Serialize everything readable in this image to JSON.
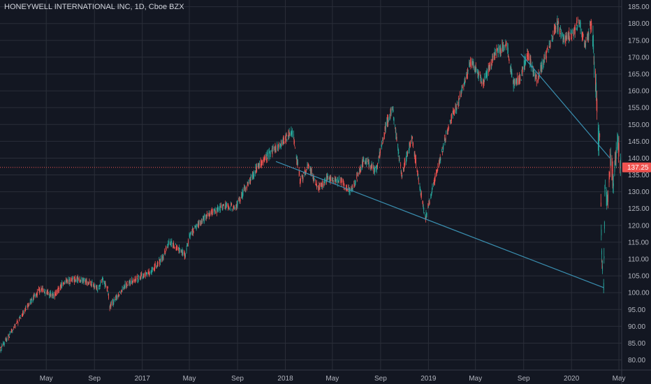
{
  "title": "HONEYWELL INTERNATIONAL INC, 1D, Cboe BZX",
  "colors": {
    "background": "#131722",
    "grid": "#2a2e39",
    "up": "#26a69a",
    "down": "#ef5350",
    "trendline": "#3a8fb0",
    "last_price_line": "#ef5350",
    "axis_text": "#b2b5be"
  },
  "chart_data": {
    "type": "candlestick",
    "title": "HONEYWELL INTERNATIONAL INC, 1D, Cboe BZX",
    "ylim": [
      77,
      187
    ],
    "y_ticks": [
      "80.00",
      "85.00",
      "90.00",
      "95.00",
      "100.00",
      "105.00",
      "110.00",
      "115.00",
      "120.00",
      "125.00",
      "130.00",
      "135.00",
      "140.00",
      "145.00",
      "150.00",
      "155.00",
      "160.00",
      "165.00",
      "170.00",
      "175.00",
      "180.00",
      "185.00"
    ],
    "x_range": [
      "2016-01-04",
      "2020-05-08"
    ],
    "x_ticks": [
      {
        "date": "2016-05-01",
        "label": "May"
      },
      {
        "date": "2016-09-01",
        "label": "Sep"
      },
      {
        "date": "2017-01-01",
        "label": "2017"
      },
      {
        "date": "2017-05-01",
        "label": "May"
      },
      {
        "date": "2017-09-01",
        "label": "Sep"
      },
      {
        "date": "2018-01-01",
        "label": "2018"
      },
      {
        "date": "2018-05-01",
        "label": "May"
      },
      {
        "date": "2018-09-01",
        "label": "Sep"
      },
      {
        "date": "2019-01-01",
        "label": "2019"
      },
      {
        "date": "2019-05-01",
        "label": "May"
      },
      {
        "date": "2019-09-01",
        "label": "Sep"
      },
      {
        "date": "2020-01-01",
        "label": "2020"
      },
      {
        "date": "2020-05-01",
        "label": "May"
      }
    ],
    "price_path": [
      [
        "2016-01-04",
        83
      ],
      [
        "2016-02-11",
        90
      ],
      [
        "2016-03-20",
        97
      ],
      [
        "2016-04-15",
        101
      ],
      [
        "2016-05-20",
        99
      ],
      [
        "2016-06-15",
        103
      ],
      [
        "2016-07-20",
        104
      ],
      [
        "2016-08-20",
        103
      ],
      [
        "2016-09-10",
        101
      ],
      [
        "2016-09-20",
        104
      ],
      [
        "2016-10-05",
        101
      ],
      [
        "2016-10-10",
        96
      ],
      [
        "2016-10-25",
        98
      ],
      [
        "2016-11-15",
        102
      ],
      [
        "2016-12-15",
        104
      ],
      [
        "2017-01-20",
        106
      ],
      [
        "2017-02-20",
        110
      ],
      [
        "2017-03-10",
        115
      ],
      [
        "2017-04-05",
        113
      ],
      [
        "2017-04-20",
        111
      ],
      [
        "2017-05-01",
        117
      ],
      [
        "2017-06-15",
        123
      ],
      [
        "2017-08-01",
        126
      ],
      [
        "2017-08-25",
        125
      ],
      [
        "2017-09-25",
        132
      ],
      [
        "2017-10-25",
        138
      ],
      [
        "2017-11-20",
        141
      ],
      [
        "2017-12-10",
        143
      ],
      [
        "2018-01-20",
        148
      ],
      [
        "2018-02-08",
        133
      ],
      [
        "2018-03-01",
        138
      ],
      [
        "2018-03-25",
        131
      ],
      [
        "2018-04-20",
        134
      ],
      [
        "2018-05-25",
        133
      ],
      [
        "2018-06-15",
        130
      ],
      [
        "2018-07-10",
        136
      ],
      [
        "2018-07-20",
        140
      ],
      [
        "2018-08-20",
        136
      ],
      [
        "2018-09-15",
        150
      ],
      [
        "2018-10-01",
        155
      ],
      [
        "2018-10-25",
        135
      ],
      [
        "2018-11-20",
        146
      ],
      [
        "2018-12-24",
        122
      ],
      [
        "2019-01-20",
        135
      ],
      [
        "2019-02-25",
        151
      ],
      [
        "2019-03-20",
        157
      ],
      [
        "2019-04-20",
        169
      ],
      [
        "2019-05-20",
        162
      ],
      [
        "2019-06-20",
        171
      ],
      [
        "2019-07-20",
        174
      ],
      [
        "2019-08-05",
        162
      ],
      [
        "2019-08-25",
        164
      ],
      [
        "2019-09-10",
        171
      ],
      [
        "2019-10-05",
        163
      ],
      [
        "2019-11-01",
        172
      ],
      [
        "2019-11-25",
        180
      ],
      [
        "2019-12-15",
        175
      ],
      [
        "2020-01-05",
        177
      ],
      [
        "2020-01-20",
        181
      ],
      [
        "2020-02-05",
        173
      ],
      [
        "2020-02-20",
        180
      ],
      [
        "2020-03-02",
        164
      ],
      [
        "2020-03-10",
        145
      ],
      [
        "2020-03-13",
        148
      ],
      [
        "2020-03-18",
        111
      ],
      [
        "2020-03-23",
        102
      ],
      [
        "2020-03-26",
        130
      ],
      [
        "2020-04-02",
        127
      ],
      [
        "2020-04-09",
        140
      ],
      [
        "2020-04-16",
        133
      ],
      [
        "2020-04-24",
        141
      ],
      [
        "2020-04-29",
        146
      ],
      [
        "2020-05-05",
        138
      ]
    ],
    "trendlines": [
      {
        "from": [
          "2017-12-08",
          139
        ],
        "to": [
          "2020-03-23",
          101.5
        ]
      },
      {
        "from": [
          "2019-08-25",
          171
        ],
        "to": [
          "2020-04-08",
          140
        ]
      }
    ],
    "last_price": 137.25,
    "last_price_label": "137.25"
  }
}
